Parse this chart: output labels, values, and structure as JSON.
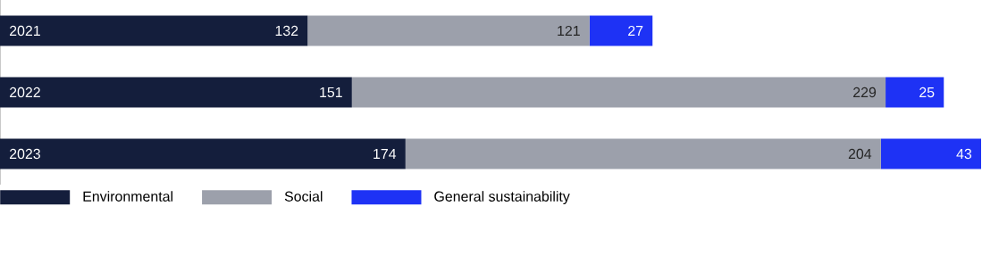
{
  "chart_data": {
    "type": "bar",
    "orientation": "horizontal",
    "stacked": true,
    "data_labels": true,
    "legend": "bottom left",
    "categories": [
      "2021",
      "2022",
      "2023"
    ],
    "series": [
      {
        "name": "Environmental",
        "color": "#141e3c",
        "values": [
          132,
          151,
          174
        ]
      },
      {
        "name": "Social",
        "color": "#9ca0ab",
        "values": [
          121,
          229,
          204
        ]
      },
      {
        "name": "General sustainability",
        "color": "#1e32f5",
        "values": [
          27,
          25,
          43
        ]
      }
    ]
  }
}
